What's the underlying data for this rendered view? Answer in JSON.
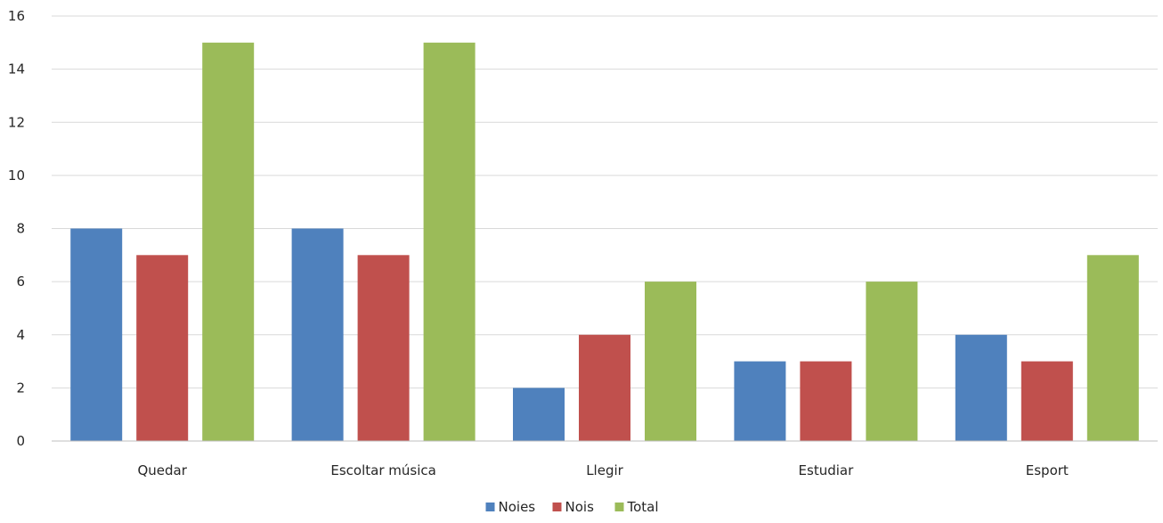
{
  "chart_data": {
    "type": "bar",
    "title": "",
    "xlabel": "",
    "ylabel": "",
    "categories": [
      "Quedar",
      "Escoltar música",
      "Llegir",
      "Estudiar",
      "Esport"
    ],
    "series": [
      {
        "name": "Noies",
        "color": "#4f81bd",
        "values": [
          8,
          8,
          2,
          3,
          4
        ]
      },
      {
        "name": "Nois",
        "color": "#c0504d",
        "values": [
          7,
          7,
          4,
          3,
          3
        ]
      },
      {
        "name": "Total",
        "color": "#9bbb59",
        "values": [
          15,
          15,
          6,
          6,
          7
        ]
      }
    ],
    "ylim": [
      0,
      16
    ],
    "yticks": [
      0,
      2,
      4,
      6,
      8,
      10,
      12,
      14,
      16
    ],
    "grid": true,
    "legend_position": "bottom"
  }
}
